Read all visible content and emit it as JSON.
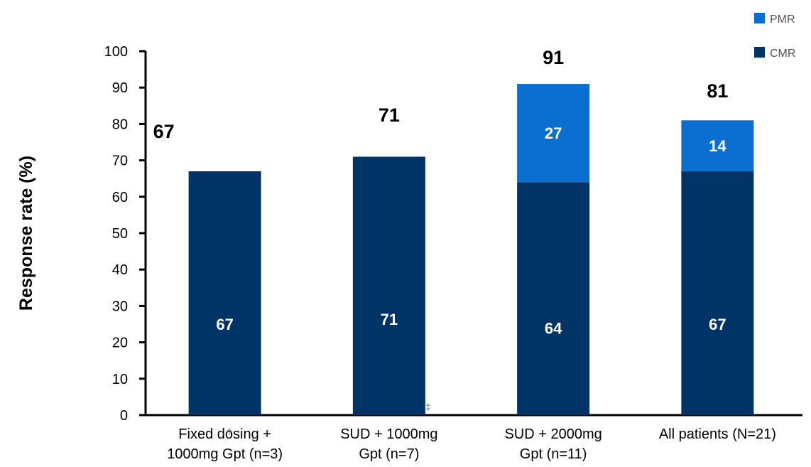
{
  "chart_data": {
    "type": "bar",
    "stacked": true,
    "title": "",
    "xlabel": "",
    "ylabel": "Response rate (%)",
    "ylim": [
      0,
      100
    ],
    "yticks": [
      0,
      10,
      20,
      30,
      40,
      50,
      60,
      70,
      80,
      90,
      100
    ],
    "categories": [
      [
        "Fixed dosing +",
        "1000mg Gpt (n=3)"
      ],
      [
        "SUD + 1000mg",
        "Gpt (n=7)"
      ],
      [
        "SUD + 2000mg",
        "Gpt (n=11)"
      ],
      [
        "All patients (N=21)"
      ]
    ],
    "series": [
      {
        "name": "CMR",
        "color": "#003366",
        "values": [
          67,
          71,
          64,
          67
        ],
        "labels": [
          "67",
          "71",
          "64",
          "67"
        ]
      },
      {
        "name": "PMR",
        "color": "#0a6fd0",
        "values": [
          0,
          0,
          27,
          14
        ],
        "labels": [
          "",
          "",
          "27",
          "14"
        ]
      }
    ],
    "totals": [
      67,
      71,
      91,
      81
    ],
    "total_labels": [
      "67",
      "71",
      "91",
      "81"
    ],
    "legend": [
      {
        "name": "PMR",
        "color": "#0a6fd0"
      },
      {
        "name": "CMR",
        "color": "#003366"
      }
    ],
    "legend_position": "top-right",
    "footnote_marks": [
      "†",
      "‡"
    ],
    "grid": false
  }
}
